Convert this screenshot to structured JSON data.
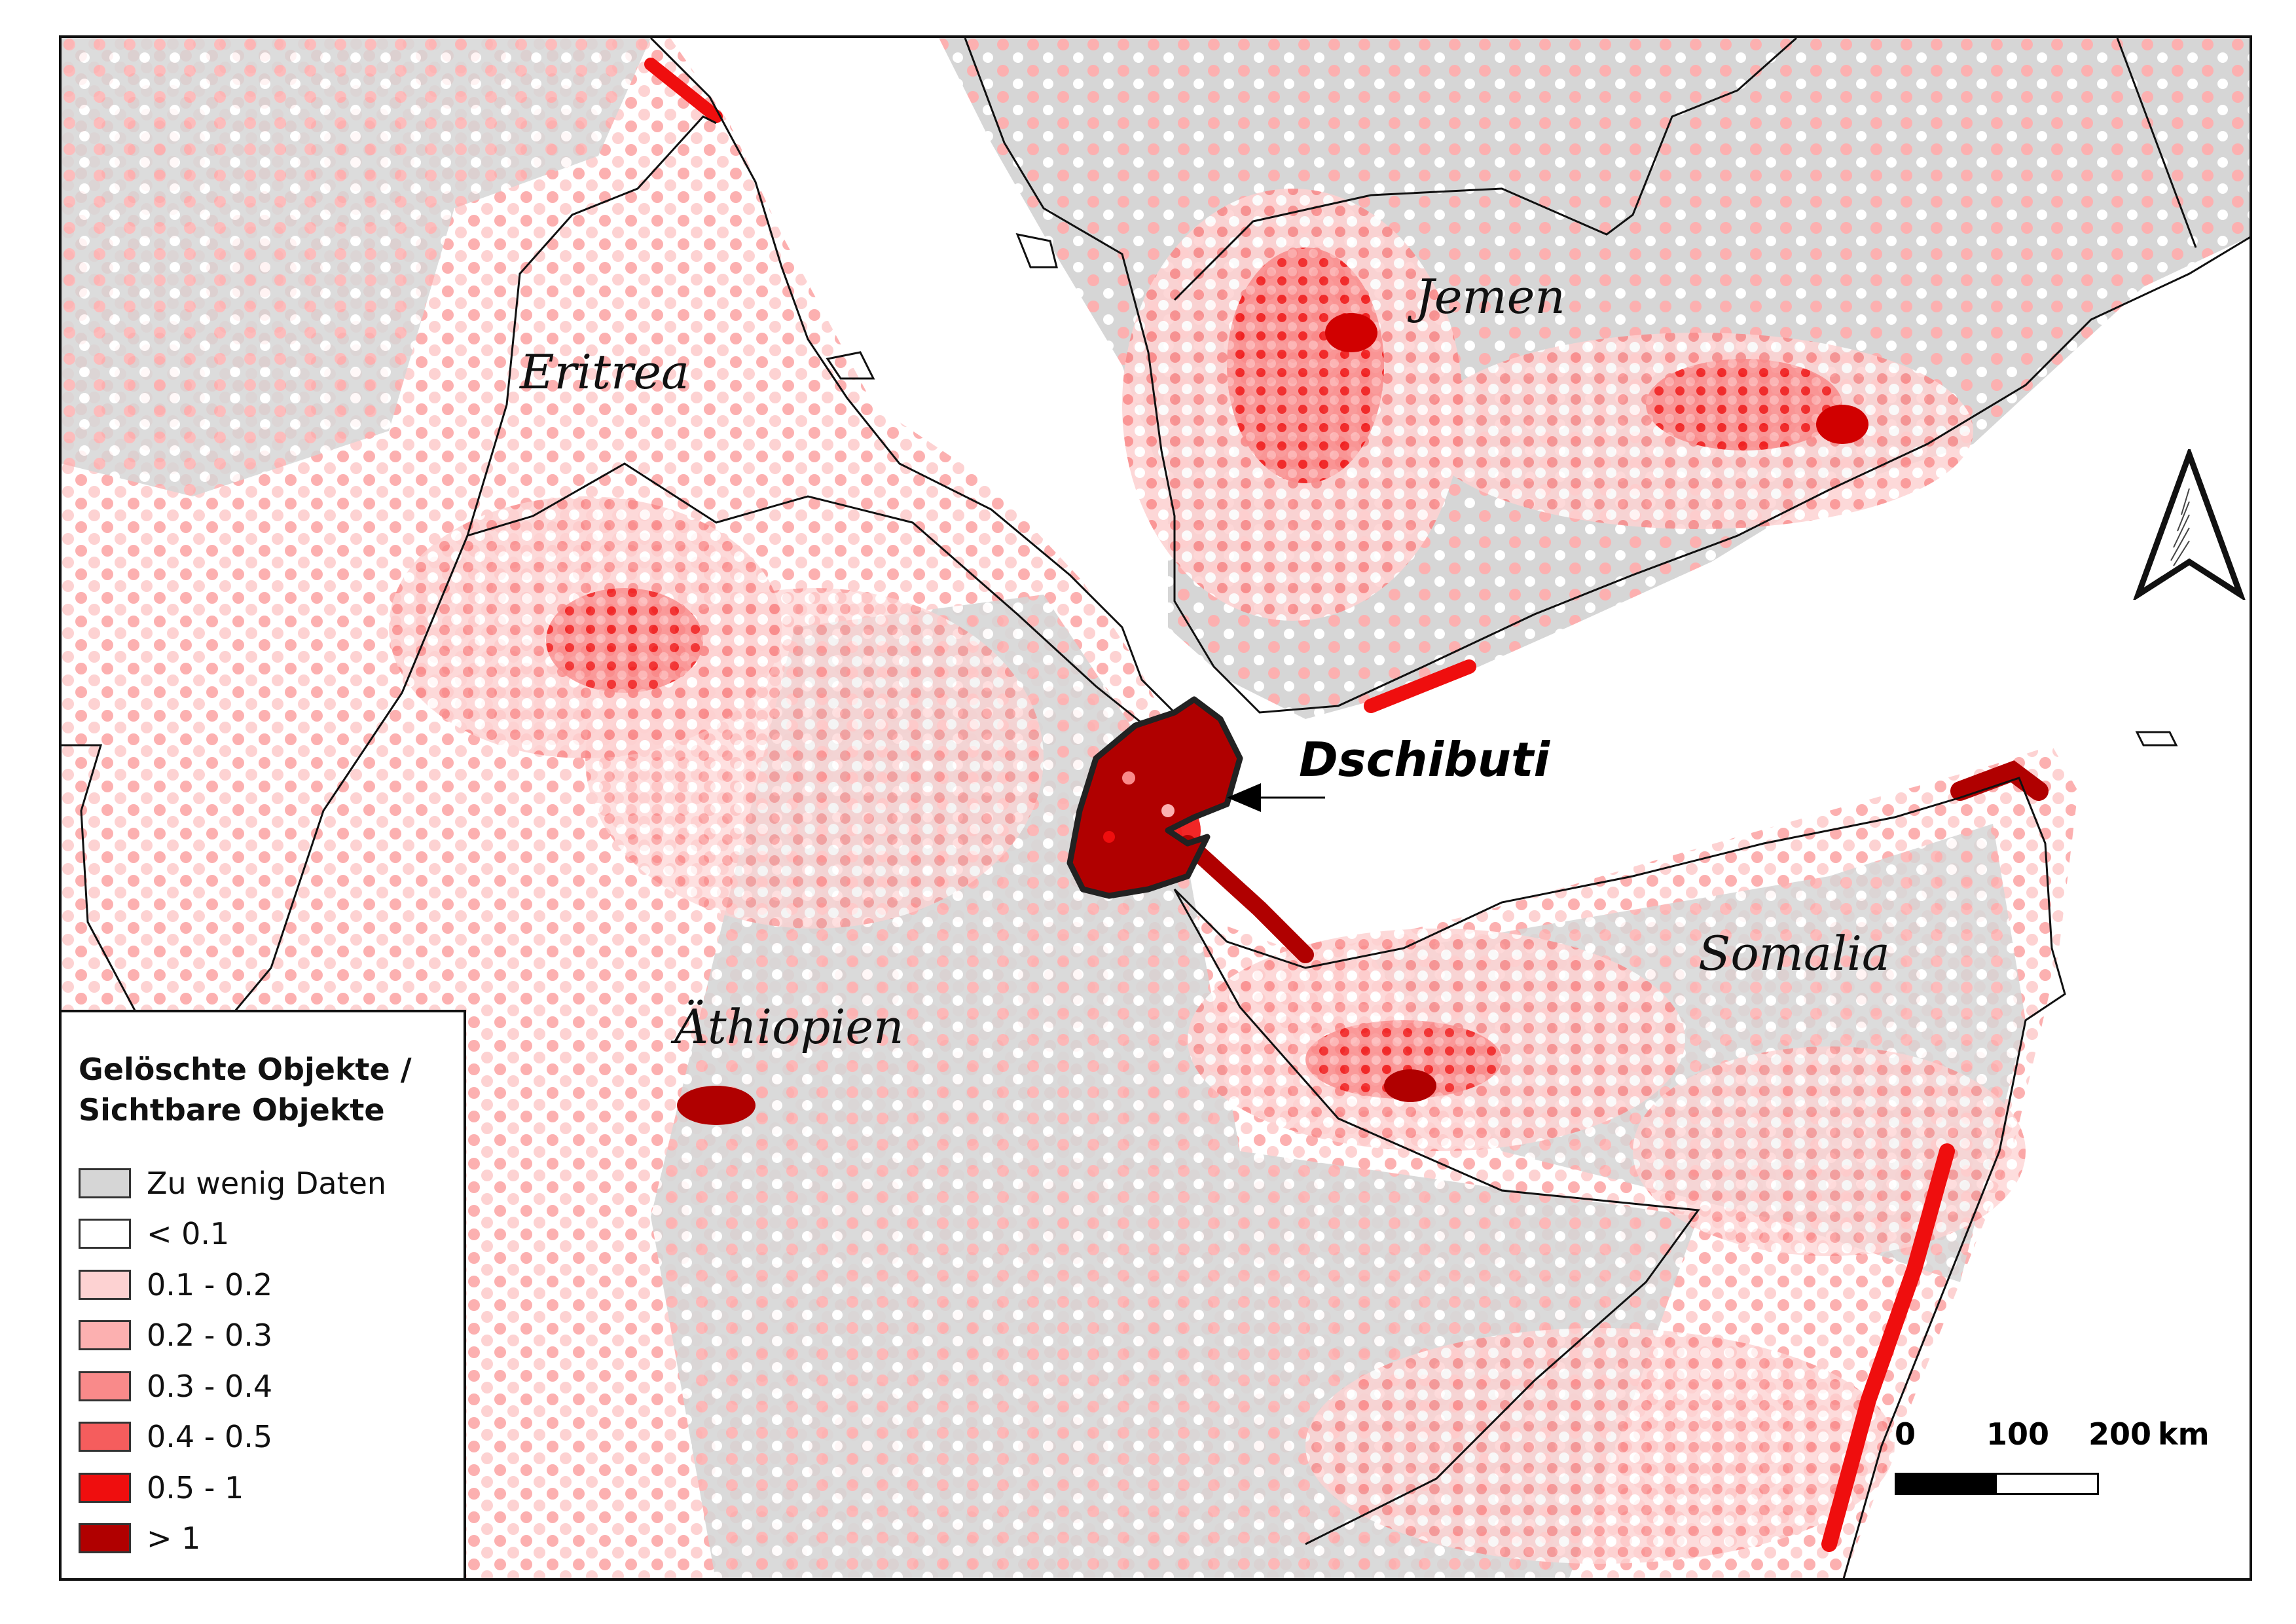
{
  "map": {
    "labels": {
      "eritrea": "Eritrea",
      "jemen": "Jemen",
      "aethiopien": "Äthiopien",
      "somalia": "Somalia",
      "dschibuti": "Dschibuti"
    }
  },
  "legend": {
    "title": "Gelöschte Objekte /\nSichtbare Objekte",
    "items": [
      {
        "label": "Zu wenig Daten",
        "color": "#d6d6d6"
      },
      {
        "label": "< 0.1",
        "color": "#ffffff"
      },
      {
        "label": "0.1 - 0.2",
        "color": "#fdd2d2"
      },
      {
        "label": "0.2 - 0.3",
        "color": "#fcb0b0"
      },
      {
        "label": "0.3 - 0.4",
        "color": "#f98a8a"
      },
      {
        "label": "0.4 - 0.5",
        "color": "#f55d5d"
      },
      {
        "label": "0.5 - 1",
        "color": "#ef0e0e"
      },
      {
        "label": "> 1",
        "color": "#b00000"
      }
    ]
  },
  "scalebar": {
    "labels": [
      "0",
      "100",
      "200"
    ],
    "unit": "km"
  },
  "north_arrow": {
    "icon": "north-arrow-icon"
  }
}
